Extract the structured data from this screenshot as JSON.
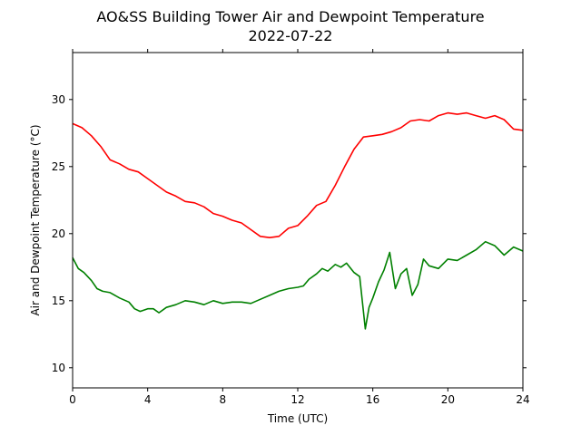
{
  "chart_data": {
    "type": "line",
    "title": "AO&SS Building Tower Air and Dewpoint Temperature",
    "subtitle": "2022-07-22",
    "xlabel": "Time (UTC)",
    "ylabel": "Air and Dewpoint Temperature (°C)",
    "xlim": [
      0,
      24
    ],
    "ylim": [
      8.5,
      33.5
    ],
    "xticks": [
      0,
      4,
      8,
      12,
      16,
      20,
      24
    ],
    "yticks": [
      10,
      15,
      20,
      25,
      30
    ],
    "grid": false,
    "series": [
      {
        "color": "#ff0000",
        "x": [
          0,
          0.5,
          1.0,
          1.5,
          2.0,
          2.5,
          3.0,
          3.5,
          4.0,
          4.5,
          5.0,
          5.5,
          6.0,
          6.5,
          7.0,
          7.5,
          8.0,
          8.5,
          9.0,
          9.5,
          10.0,
          10.5,
          11.0,
          11.5,
          12.0,
          12.5,
          13.0,
          13.5,
          14.0,
          14.5,
          15.0,
          15.5,
          16.0,
          16.5,
          17.0,
          17.5,
          18.0,
          18.5,
          19.0,
          19.5,
          20.0,
          20.5,
          21.0,
          21.5,
          22.0,
          22.5,
          23.0,
          23.5,
          24.0
        ],
        "y": [
          28.2,
          27.9,
          27.3,
          26.5,
          25.5,
          25.2,
          24.8,
          24.6,
          24.1,
          23.6,
          23.1,
          22.8,
          22.4,
          22.3,
          22.0,
          21.5,
          21.3,
          21.0,
          20.8,
          20.3,
          19.8,
          19.7,
          19.8,
          20.4,
          20.6,
          21.3,
          22.1,
          22.4,
          23.6,
          25.0,
          26.3,
          27.2,
          27.3,
          27.4,
          27.6,
          27.9,
          28.4,
          28.5,
          28.4,
          28.8,
          29.0,
          28.9,
          29.0,
          28.8,
          28.6,
          28.8,
          28.5,
          27.8,
          27.7
        ]
      },
      {
        "color": "#008000",
        "x": [
          0,
          0.3,
          0.6,
          1.0,
          1.3,
          1.6,
          2.0,
          2.5,
          3.0,
          3.3,
          3.6,
          4.0,
          4.3,
          4.6,
          5.0,
          5.5,
          6.0,
          6.5,
          7.0,
          7.5,
          8.0,
          8.5,
          9.0,
          9.5,
          10.0,
          10.5,
          11.0,
          11.5,
          12.0,
          12.3,
          12.6,
          13.0,
          13.3,
          13.6,
          14.0,
          14.3,
          14.6,
          15.0,
          15.3,
          15.6,
          15.8,
          16.0,
          16.3,
          16.6,
          16.9,
          17.2,
          17.5,
          17.8,
          18.1,
          18.4,
          18.7,
          19.0,
          19.5,
          20.0,
          20.5,
          21.0,
          21.5,
          22.0,
          22.5,
          23.0,
          23.5,
          24.0
        ],
        "y": [
          18.2,
          17.4,
          17.1,
          16.5,
          15.9,
          15.7,
          15.6,
          15.2,
          14.9,
          14.4,
          14.2,
          14.4,
          14.4,
          14.1,
          14.5,
          14.7,
          15.0,
          14.9,
          14.7,
          15.0,
          14.8,
          14.9,
          14.9,
          14.8,
          15.1,
          15.4,
          15.7,
          15.9,
          16.0,
          16.1,
          16.6,
          17.0,
          17.4,
          17.2,
          17.7,
          17.5,
          17.8,
          17.1,
          16.8,
          12.9,
          14.5,
          15.2,
          16.4,
          17.3,
          18.6,
          15.9,
          17.0,
          17.4,
          15.4,
          16.2,
          18.1,
          17.6,
          17.4,
          18.1,
          18.0,
          18.4,
          18.8,
          19.4,
          19.1,
          18.4,
          19.0,
          18.7
        ]
      }
    ]
  }
}
